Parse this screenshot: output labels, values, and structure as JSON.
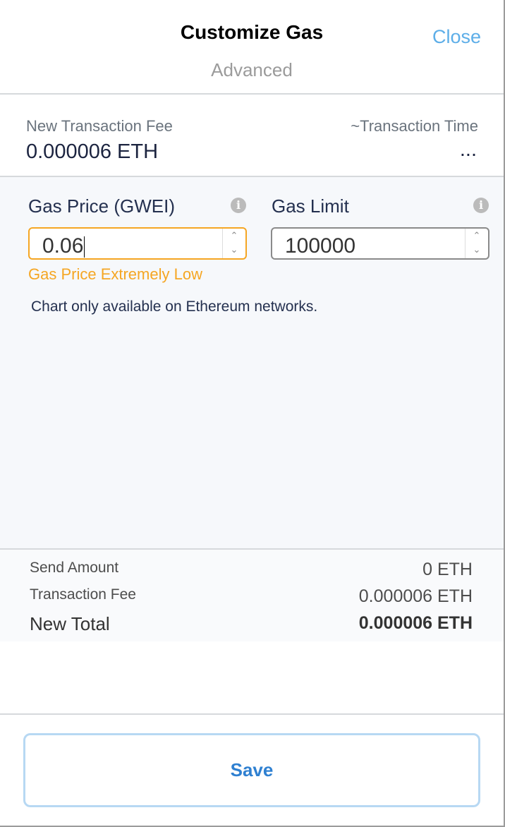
{
  "header": {
    "title": "Customize Gas",
    "subtitle": "Advanced",
    "close_label": "Close"
  },
  "fee": {
    "label": "New Transaction Fee",
    "value": "0.000006 ETH",
    "time_label": "~Transaction Time",
    "time_value": "..."
  },
  "advanced": {
    "gas_price": {
      "label": "Gas Price (GWEI)",
      "value": "0.06",
      "warning": "Gas Price Extremely Low"
    },
    "gas_limit": {
      "label": "Gas Limit",
      "value": "100000"
    },
    "chart_note": "Chart only available on Ethereum networks."
  },
  "summary": {
    "rows": [
      {
        "label": "Send Amount",
        "value": "0 ETH"
      },
      {
        "label": "Transaction Fee",
        "value": "0.000006 ETH"
      },
      {
        "label": "New Total",
        "value": "0.000006 ETH"
      }
    ]
  },
  "footer": {
    "save_label": "Save"
  },
  "colors": {
    "accent": "#2f80d1",
    "close": "#5daee8",
    "warning": "#f5a623"
  }
}
